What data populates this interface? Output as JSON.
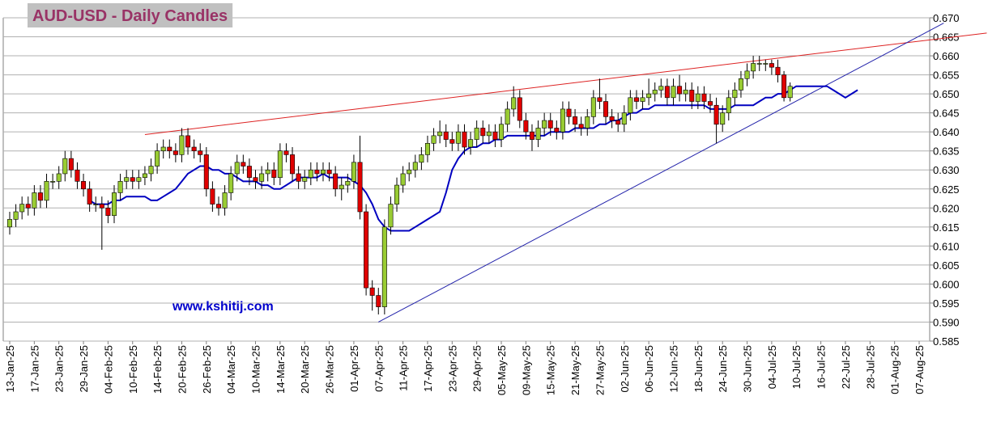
{
  "chart_data": {
    "type": "candlestick",
    "title": "AUD-USD - Daily Candles",
    "watermark": "www.kshitij.com",
    "up_color": "#99cc33",
    "down_color": "#e00000",
    "grid": true,
    "ylim": [
      0.585,
      0.67
    ],
    "yticks": [
      {
        "value": 0.585,
        "label": "0.585"
      },
      {
        "value": 0.59,
        "label": "0.590"
      },
      {
        "value": 0.595,
        "label": "0.595"
      },
      {
        "value": 0.6,
        "label": "0.600"
      },
      {
        "value": 0.605,
        "label": "0.605"
      },
      {
        "value": 0.61,
        "label": "0.610"
      },
      {
        "value": 0.615,
        "label": "0.615"
      },
      {
        "value": 0.62,
        "label": "0.620"
      },
      {
        "value": 0.625,
        "label": "0.625"
      },
      {
        "value": 0.63,
        "label": "0.630"
      },
      {
        "value": 0.635,
        "label": "0.635"
      },
      {
        "value": 0.64,
        "label": "0.640"
      },
      {
        "value": 0.645,
        "label": "0.645"
      },
      {
        "value": 0.65,
        "label": "0.650"
      },
      {
        "value": 0.655,
        "label": "0.655"
      },
      {
        "value": 0.66,
        "label": "0.660"
      },
      {
        "value": 0.665,
        "label": "0.665"
      },
      {
        "value": 0.67,
        "label": "0.670"
      }
    ],
    "categories": [
      "13-Jan-25",
      null,
      null,
      null,
      "17-Jan-25",
      null,
      null,
      null,
      "23-Jan-25",
      null,
      null,
      null,
      "29-Jan-25",
      null,
      null,
      null,
      "04-Feb-25",
      null,
      null,
      null,
      "10-Feb-25",
      null,
      null,
      null,
      "14-Feb-25",
      null,
      null,
      null,
      "20-Feb-25",
      null,
      null,
      null,
      "26-Feb-25",
      null,
      null,
      null,
      "04-Mar-25",
      null,
      null,
      null,
      "10-Mar-25",
      null,
      null,
      null,
      "14-Mar-25",
      null,
      null,
      null,
      "20-Mar-25",
      null,
      null,
      null,
      "26-Mar-25",
      null,
      null,
      null,
      "01-Apr-25",
      null,
      null,
      null,
      "07-Apr-25",
      null,
      null,
      null,
      "11-Apr-25",
      null,
      null,
      null,
      "17-Apr-25",
      null,
      null,
      null,
      "23-Apr-25",
      null,
      null,
      null,
      "29-Apr-25",
      null,
      null,
      null,
      "05-May-25",
      null,
      null,
      null,
      "09-May-25",
      null,
      null,
      null,
      "15-May-25",
      null,
      null,
      null,
      "21-May-25",
      null,
      null,
      null,
      "27-May-25",
      null,
      null,
      null,
      "02-Jun-25",
      null,
      null,
      null,
      "06-Jun-25",
      null,
      null,
      null,
      "12-Jun-25",
      null,
      null,
      null,
      "18-Jun-25",
      null,
      null,
      null,
      "24-Jun-25",
      null,
      null,
      null,
      "30-Jun-25",
      null,
      null,
      null,
      "04-Jul-25",
      null,
      null,
      null,
      "10-Jul-25",
      null,
      null,
      null,
      "16-Jul-25",
      null,
      null,
      null,
      "22-Jul-25",
      null,
      null,
      null,
      "28-Jul-25",
      null,
      null,
      null,
      "01-Aug-25",
      null,
      null,
      null,
      "07-Aug-25"
    ],
    "open": [
      0.615,
      0.617,
      0.619,
      0.621,
      0.62,
      0.624,
      0.622,
      0.627,
      0.627,
      0.629,
      0.633,
      0.63,
      0.627,
      0.625,
      0.621,
      0.621,
      0.62,
      0.618,
      0.624,
      0.627,
      0.628,
      0.627,
      0.628,
      0.629,
      0.631,
      0.635,
      0.636,
      0.635,
      0.634,
      0.639,
      0.636,
      0.635,
      0.634,
      0.625,
      0.621,
      0.62,
      0.624,
      0.629,
      0.632,
      0.631,
      0.628,
      0.627,
      0.629,
      0.63,
      0.628,
      0.635,
      0.634,
      0.629,
      0.627,
      0.628,
      0.63,
      0.629,
      0.63,
      0.629,
      0.625,
      0.626,
      0.627,
      0.632,
      0.619,
      0.599,
      0.597,
      0.594,
      0.615,
      0.621,
      0.626,
      0.629,
      0.63,
      0.632,
      0.634,
      0.637,
      0.639,
      0.64,
      0.638,
      0.637,
      0.64,
      0.636,
      0.638,
      0.641,
      0.639,
      0.64,
      0.638,
      0.642,
      0.646,
      0.649,
      0.643,
      0.64,
      0.638,
      0.641,
      0.643,
      0.641,
      0.64,
      0.646,
      0.644,
      0.642,
      0.641,
      0.644,
      0.649,
      0.648,
      0.644,
      0.643,
      0.642,
      0.645,
      0.649,
      0.648,
      0.649,
      0.65,
      0.651,
      0.652,
      0.649,
      0.652,
      0.65,
      0.651,
      0.648,
      0.65,
      0.648,
      0.647,
      0.642,
      0.645,
      0.649,
      0.651,
      0.654,
      0.656,
      0.658,
      0.658,
      0.658,
      0.657,
      0.655,
      0.649,
      null,
      null,
      null,
      null,
      null,
      null,
      null,
      null,
      null,
      null,
      null,
      null,
      null,
      null,
      null,
      null,
      null,
      null,
      null,
      null,
      null
    ],
    "high": [
      0.619,
      0.621,
      0.623,
      0.623,
      0.626,
      0.626,
      0.629,
      0.629,
      0.631,
      0.635,
      0.635,
      0.632,
      0.629,
      0.627,
      0.623,
      0.623,
      0.622,
      0.626,
      0.629,
      0.63,
      0.63,
      0.63,
      0.631,
      0.633,
      0.637,
      0.638,
      0.638,
      0.637,
      0.641,
      0.641,
      0.638,
      0.637,
      0.636,
      0.627,
      0.623,
      0.626,
      0.631,
      0.634,
      0.634,
      0.633,
      0.63,
      0.631,
      0.632,
      0.632,
      0.637,
      0.637,
      0.636,
      0.631,
      0.63,
      0.632,
      0.632,
      0.632,
      0.632,
      0.631,
      0.628,
      0.629,
      0.634,
      0.639,
      0.621,
      0.601,
      0.599,
      0.617,
      0.623,
      0.628,
      0.631,
      0.632,
      0.634,
      0.636,
      0.639,
      0.641,
      0.643,
      0.642,
      0.64,
      0.642,
      0.642,
      0.64,
      0.643,
      0.643,
      0.642,
      0.642,
      0.644,
      0.648,
      0.652,
      0.651,
      0.645,
      0.642,
      0.643,
      0.645,
      0.645,
      0.643,
      0.648,
      0.648,
      0.646,
      0.644,
      0.646,
      0.651,
      0.654,
      0.65,
      0.646,
      0.645,
      0.647,
      0.651,
      0.651,
      0.651,
      0.654,
      0.653,
      0.654,
      0.654,
      0.654,
      0.655,
      0.653,
      0.653,
      0.652,
      0.652,
      0.65,
      0.649,
      0.647,
      0.651,
      0.653,
      0.656,
      0.658,
      0.66,
      0.66,
      0.659,
      0.659,
      0.659,
      0.656,
      0.653,
      null,
      null,
      null,
      null,
      null,
      null,
      null,
      null,
      null,
      null,
      null,
      null,
      null,
      null,
      null,
      null,
      null,
      null,
      null,
      null,
      null
    ],
    "low": [
      0.613,
      0.615,
      0.617,
      0.618,
      0.618,
      0.62,
      0.62,
      0.625,
      0.625,
      0.627,
      0.628,
      0.625,
      0.623,
      0.619,
      0.619,
      0.609,
      0.616,
      0.616,
      0.622,
      0.625,
      0.625,
      0.625,
      0.626,
      0.627,
      0.629,
      0.633,
      0.633,
      0.632,
      0.632,
      0.634,
      0.633,
      0.632,
      0.623,
      0.619,
      0.618,
      0.618,
      0.622,
      0.627,
      0.629,
      0.626,
      0.625,
      0.625,
      0.627,
      0.626,
      0.626,
      0.632,
      0.627,
      0.625,
      0.625,
      0.626,
      0.627,
      0.627,
      0.627,
      0.623,
      0.622,
      0.624,
      0.625,
      0.617,
      0.597,
      0.593,
      0.592,
      0.592,
      0.613,
      0.619,
      0.624,
      0.627,
      0.628,
      0.63,
      0.632,
      0.635,
      0.637,
      0.636,
      0.635,
      0.635,
      0.634,
      0.634,
      0.636,
      0.637,
      0.637,
      0.636,
      0.636,
      0.64,
      0.644,
      0.641,
      0.638,
      0.635,
      0.636,
      0.639,
      0.639,
      0.638,
      0.638,
      0.642,
      0.64,
      0.639,
      0.639,
      0.642,
      0.646,
      0.642,
      0.641,
      0.64,
      0.64,
      0.643,
      0.646,
      0.646,
      0.647,
      0.648,
      0.649,
      0.647,
      0.647,
      0.648,
      0.648,
      0.646,
      0.646,
      0.646,
      0.645,
      0.637,
      0.64,
      0.643,
      0.647,
      0.649,
      0.652,
      0.654,
      0.656,
      0.656,
      0.655,
      0.653,
      0.648,
      0.648,
      null,
      null,
      null,
      null,
      null,
      null,
      null,
      null,
      null,
      null,
      null,
      null,
      null,
      null,
      null,
      null,
      null,
      null,
      null,
      null,
      null
    ],
    "close": [
      0.617,
      0.619,
      0.621,
      0.62,
      0.624,
      0.622,
      0.627,
      0.627,
      0.629,
      0.633,
      0.63,
      0.627,
      0.625,
      0.621,
      0.621,
      0.62,
      0.618,
      0.624,
      0.627,
      0.628,
      0.627,
      0.628,
      0.629,
      0.631,
      0.635,
      0.636,
      0.635,
      0.634,
      0.639,
      0.636,
      0.635,
      0.634,
      0.625,
      0.621,
      0.62,
      0.624,
      0.629,
      0.632,
      0.631,
      0.628,
      0.627,
      0.629,
      0.63,
      0.628,
      0.635,
      0.634,
      0.629,
      0.627,
      0.628,
      0.63,
      0.629,
      0.63,
      0.629,
      0.625,
      0.626,
      0.627,
      0.632,
      0.619,
      0.599,
      0.597,
      0.594,
      0.615,
      0.621,
      0.626,
      0.629,
      0.63,
      0.632,
      0.634,
      0.637,
      0.639,
      0.64,
      0.638,
      0.637,
      0.64,
      0.636,
      0.638,
      0.641,
      0.639,
      0.64,
      0.638,
      0.642,
      0.646,
      0.649,
      0.643,
      0.64,
      0.638,
      0.641,
      0.643,
      0.641,
      0.64,
      0.646,
      0.644,
      0.642,
      0.641,
      0.644,
      0.649,
      0.648,
      0.644,
      0.643,
      0.642,
      0.645,
      0.649,
      0.648,
      0.649,
      0.65,
      0.651,
      0.652,
      0.649,
      0.652,
      0.65,
      0.651,
      0.648,
      0.65,
      0.648,
      0.647,
      0.642,
      0.645,
      0.649,
      0.651,
      0.654,
      0.656,
      0.658,
      0.658,
      0.658,
      0.657,
      0.655,
      0.649,
      0.652,
      null,
      null,
      null,
      null,
      null,
      null,
      null,
      null,
      null,
      null,
      null,
      null,
      null,
      null,
      null,
      null,
      null,
      null,
      null,
      null,
      null
    ],
    "moving_average": {
      "color": "#0000c0",
      "values": [
        null,
        null,
        null,
        null,
        null,
        null,
        null,
        null,
        null,
        null,
        null,
        null,
        null,
        0.622,
        0.621,
        0.621,
        0.621,
        0.622,
        0.622,
        0.623,
        0.623,
        0.623,
        0.623,
        0.622,
        0.622,
        0.623,
        0.624,
        0.625,
        0.627,
        0.629,
        0.63,
        0.631,
        0.631,
        0.63,
        0.63,
        0.629,
        0.629,
        0.628,
        0.627,
        0.627,
        0.627,
        0.626,
        0.626,
        0.625,
        0.625,
        0.626,
        0.627,
        0.628,
        0.628,
        0.628,
        0.628,
        0.629,
        0.628,
        0.628,
        0.628,
        0.628,
        0.627,
        0.626,
        0.624,
        0.621,
        0.617,
        0.615,
        0.614,
        0.614,
        0.614,
        0.614,
        0.615,
        0.616,
        0.617,
        0.618,
        0.619,
        0.624,
        0.63,
        0.633,
        0.635,
        0.636,
        0.636,
        0.637,
        0.637,
        0.638,
        0.638,
        0.639,
        0.639,
        0.639,
        0.639,
        0.639,
        0.639,
        0.639,
        0.64,
        0.64,
        0.64,
        0.64,
        0.641,
        0.641,
        0.641,
        0.641,
        0.642,
        0.642,
        0.643,
        0.643,
        0.644,
        0.645,
        0.645,
        0.646,
        0.646,
        0.647,
        0.647,
        0.647,
        0.647,
        0.647,
        0.647,
        0.647,
        0.647,
        0.647,
        0.646,
        0.646,
        0.646,
        0.646,
        0.647,
        0.647,
        0.647,
        0.647,
        0.648,
        0.649,
        0.649,
        0.65,
        0.65,
        0.651,
        0.652,
        0.652,
        0.652,
        0.652,
        0.652,
        0.652,
        0.651,
        0.65,
        0.649,
        0.65,
        0.651,
        null,
        null,
        null,
        null,
        null,
        null,
        null,
        null,
        null,
        null
      ]
    },
    "trendlines": [
      {
        "color": "#dd2222",
        "x": [
          22,
          159
        ],
        "values": [
          0.6393,
          0.666
        ]
      },
      {
        "color": "#2222aa",
        "x": [
          60,
          152
        ],
        "values": [
          0.59,
          0.6686
        ]
      }
    ]
  }
}
